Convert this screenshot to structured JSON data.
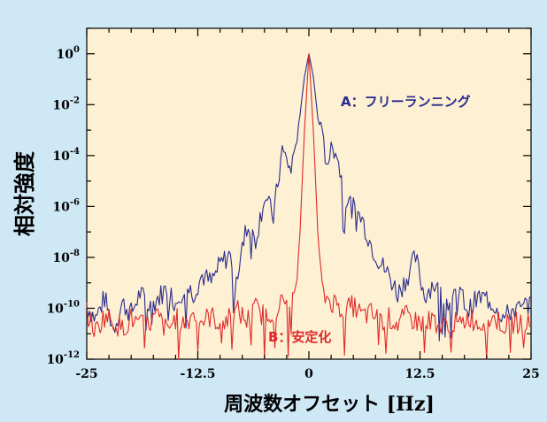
{
  "chart_data": {
    "type": "line",
    "title": "",
    "xlabel": "周波数オフセット [Hz]",
    "ylabel": "相対強度",
    "xlim": [
      -25,
      25
    ],
    "ylim_log10": [
      -12,
      1
    ],
    "y_scale": "log",
    "x_ticks": [
      {
        "value": -25,
        "label": "-25"
      },
      {
        "value": -12.5,
        "label": "-12.5"
      },
      {
        "value": 0,
        "label": "0"
      },
      {
        "value": 12.5,
        "label": "12.5"
      },
      {
        "value": 25,
        "label": "25"
      }
    ],
    "y_ticks": [
      {
        "exp": 0,
        "base": "10",
        "sup": "0"
      },
      {
        "exp": -2,
        "base": "10",
        "sup": "-2"
      },
      {
        "exp": -4,
        "base": "10",
        "sup": "-4"
      },
      {
        "exp": -6,
        "base": "10",
        "sup": "-6"
      },
      {
        "exp": -8,
        "base": "10",
        "sup": "-8"
      },
      {
        "exp": -10,
        "base": "10",
        "sup": "-10"
      },
      {
        "exp": -12,
        "base": "10",
        "sup": "-12"
      }
    ],
    "grid": false,
    "series": [
      {
        "name": "A：フリーランニング",
        "color": "#2b2b8c",
        "x": [
          -25,
          -24,
          -23,
          -22,
          -21,
          -20,
          -19,
          -18,
          -17,
          -16,
          -15,
          -14,
          -13,
          -12,
          -11,
          -10,
          -9,
          -8,
          -7,
          -6,
          -5,
          -4,
          -3,
          -2,
          -1,
          -0.5,
          0,
          0.5,
          1,
          2,
          3,
          4,
          5,
          6,
          7,
          8,
          9,
          10,
          11,
          12,
          13,
          14,
          15,
          16,
          17,
          18,
          19,
          20,
          21,
          22,
          23,
          24,
          25
        ],
        "log10_y": [
          -9.9,
          -10.4,
          -9.6,
          -10.8,
          -9.8,
          -10.2,
          -9.4,
          -10.0,
          -9.6,
          -9.2,
          -9.8,
          -9.1,
          -9.4,
          -8.7,
          -9.0,
          -8.3,
          -7.9,
          -8.6,
          -6.8,
          -7.3,
          -5.6,
          -6.4,
          -3.8,
          -4.6,
          -2.4,
          -0.9,
          0.0,
          -0.9,
          -2.5,
          -4.2,
          -3.6,
          -5.6,
          -6.1,
          -6.5,
          -7.5,
          -8.2,
          -8.7,
          -9.4,
          -8.8,
          -8.0,
          -9.5,
          -9.0,
          -9.6,
          -9.8,
          -9.4,
          -10.1,
          -9.6,
          -9.6,
          -9.9,
          -10.4,
          -10.0,
          -10.1,
          -9.6
        ]
      },
      {
        "name": "B：安定化",
        "color": "#e02a2a",
        "x": [
          -25,
          -24,
          -23,
          -22,
          -21,
          -20,
          -19,
          -18,
          -17,
          -16,
          -15,
          -14,
          -13,
          -12,
          -11,
          -10,
          -9,
          -8,
          -7,
          -6,
          -5,
          -4,
          -3,
          -2,
          -1.5,
          -1,
          -0.5,
          0,
          0.5,
          1,
          1.5,
          2,
          3,
          4,
          5,
          6,
          7,
          8,
          9,
          10,
          11,
          12,
          13,
          14,
          15,
          16,
          17,
          18,
          19,
          20,
          21,
          22,
          23,
          24,
          25
        ],
        "log10_y": [
          -10.2,
          -10.9,
          -10.3,
          -10.5,
          -10.8,
          -10.4,
          -10.7,
          -10.6,
          -10.3,
          -10.9,
          -10.4,
          -10.6,
          -10.2,
          -10.5,
          -10.3,
          -10.6,
          -10.4,
          -10.1,
          -10.5,
          -10.0,
          -10.3,
          -10.1,
          -9.8,
          -9.7,
          -9.5,
          -7.0,
          -3.0,
          0.0,
          -3.0,
          -7.0,
          -9.4,
          -9.6,
          -9.8,
          -10.1,
          -9.9,
          -10.3,
          -10.2,
          -10.5,
          -10.4,
          -10.6,
          -10.3,
          -10.5,
          -10.6,
          -10.4,
          -10.8,
          -10.5,
          -10.7,
          -10.3,
          -10.6,
          -10.5,
          -10.4,
          -10.7,
          -10.6,
          -10.5,
          -10.7
        ]
      }
    ],
    "annotations": {
      "a_label": "A：フリーランニング",
      "b_label": "B：安定化"
    },
    "colors": {
      "plot_bg": "#fdf0d3",
      "page_bg": "#cfe8f6",
      "series_a": "#2b2b8c",
      "series_b": "#e02a2a"
    }
  }
}
